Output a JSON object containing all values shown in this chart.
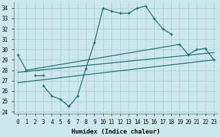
{
  "xlabel": "Humidex (Indice chaleur)",
  "bg_color": "#cce8ec",
  "grid_color": "#a8cdd4",
  "line_color": "#1a6b6b",
  "line_zigzag": {
    "x": [
      3,
      4,
      5,
      6,
      7,
      8,
      9,
      10,
      11,
      12,
      13,
      14,
      15,
      16,
      17,
      18
    ],
    "y": [
      26.5,
      25.5,
      25.2,
      24.5,
      25.5,
      28.2,
      30.7,
      34.0,
      33.7,
      33.5,
      33.5,
      34.0,
      34.2,
      33.0,
      32.0,
      31.5
    ]
  },
  "line_upper": {
    "x": [
      0,
      1,
      19,
      20,
      21,
      22,
      23
    ],
    "y": [
      29.5,
      28.0,
      30.5,
      29.5,
      30.0,
      30.1,
      29.0
    ]
  },
  "line_lower_pts": {
    "x": [
      2,
      3
    ],
    "y": [
      27.5,
      27.5
    ]
  },
  "line_diag1": {
    "x": [
      0,
      23
    ],
    "y": [
      26.8,
      29.0
    ]
  },
  "line_diag2": {
    "x": [
      0,
      23
    ],
    "y": [
      27.8,
      29.7
    ]
  },
  "xlim": [
    -0.5,
    23.5
  ],
  "ylim": [
    23.8,
    34.6
  ],
  "yticks": [
    24,
    25,
    26,
    27,
    28,
    29,
    30,
    31,
    32,
    33,
    34
  ],
  "xticks": [
    0,
    1,
    2,
    3,
    4,
    5,
    6,
    7,
    8,
    9,
    10,
    11,
    12,
    13,
    14,
    15,
    16,
    17,
    18,
    19,
    20,
    21,
    22,
    23
  ]
}
